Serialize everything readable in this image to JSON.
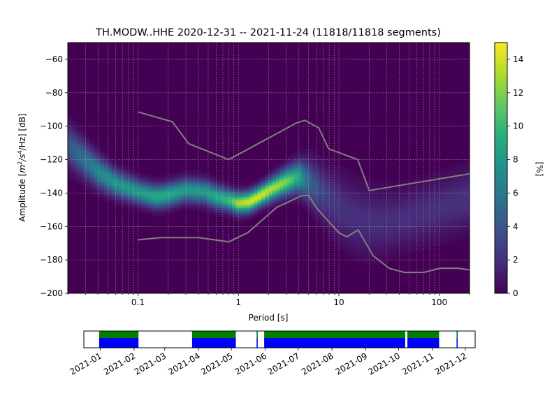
{
  "chart_data": [
    {
      "type": "heatmap",
      "title": "TH.MODW..HHE   2020-12-31 -- 2021-11-24  (11818/11818 segments)",
      "xlabel": "Period [s]",
      "ylabel_prefix": "Amplitude [",
      "ylabel_unit_base": "m",
      "ylabel_unit_sup1": "2",
      "ylabel_unit_mid": "/s",
      "ylabel_unit_sup2": "4",
      "ylabel_unit_end": "/Hz] [dB]",
      "x_scale": "log",
      "xlim": [
        0.02,
        200
      ],
      "ylim": [
        -200,
        -50
      ],
      "xticks": [
        0.1,
        1,
        10,
        100
      ],
      "xtick_labels": [
        "0.1",
        "1",
        "10",
        "100"
      ],
      "yticks": [
        -60,
        -80,
        -100,
        -120,
        -140,
        -160,
        -180,
        -200
      ],
      "ytick_labels": [
        "−60",
        "−80",
        "−100",
        "−120",
        "−140",
        "−160",
        "−180",
        "−200"
      ],
      "grid": true,
      "colormap": "viridis",
      "colorbar": {
        "label": "[%]",
        "range": [
          0,
          15
        ],
        "ticks": [
          0,
          2,
          4,
          6,
          8,
          10,
          12,
          14
        ],
        "tick_labels": [
          "0",
          "2",
          "4",
          "6",
          "8",
          "10",
          "12",
          "14"
        ]
      },
      "density_ridge": {
        "period": [
          0.02,
          0.04,
          0.06,
          0.1,
          0.15,
          0.2,
          0.3,
          0.45,
          0.6,
          0.8,
          1.0,
          1.3,
          1.7,
          2.2,
          3.0,
          4.0,
          5.0,
          7.0,
          10,
          15,
          25,
          40,
          60,
          100,
          200
        ],
        "db": [
          -111,
          -127,
          -134,
          -139,
          -142,
          -141,
          -138,
          -139,
          -142,
          -144,
          -146,
          -145,
          -141,
          -137,
          -133,
          -130,
          -133,
          -140,
          -148,
          -155,
          -158,
          -156,
          -153,
          -149,
          -143
        ],
        "width_db": [
          8,
          6,
          5,
          4.5,
          4.5,
          4.5,
          4.5,
          4.5,
          4.5,
          4,
          4,
          4,
          4,
          4.5,
          5,
          6,
          8,
          10,
          12,
          13,
          12,
          11,
          11,
          11,
          11
        ],
        "peak_percent": [
          4,
          7,
          8,
          8,
          9,
          9,
          8,
          8,
          9,
          10,
          13,
          14,
          14,
          13,
          12,
          9,
          5,
          3,
          2.2,
          2,
          2,
          2,
          2,
          2,
          2.2
        ]
      },
      "noise_models": [
        {
          "period": [
            0.1,
            0.22,
            0.32,
            0.8,
            3.8,
            4.6,
            6.3,
            7.9,
            15.4,
            20,
            200
          ],
          "db": [
            -91.5,
            -97.4,
            -110.5,
            -120,
            -98,
            -96.5,
            -101,
            -113.5,
            -120,
            -138.5,
            -128.5
          ]
        },
        {
          "period": [
            0.1,
            0.17,
            0.4,
            0.8,
            1.24,
            2.4,
            4.3,
            5.0,
            6.0,
            10,
            12,
            15.6,
            21.9,
            31.6,
            45,
            70,
            101,
            154,
            200
          ],
          "db": [
            -168,
            -166.7,
            -166.7,
            -169.2,
            -163.7,
            -148.6,
            -141.5,
            -141.5,
            -149,
            -163.8,
            -166.2,
            -162.1,
            -177.5,
            -185,
            -187.5,
            -187.5,
            -185,
            -185,
            -186
          ]
        }
      ]
    },
    {
      "type": "timeline",
      "x_scale": "date",
      "xlim": [
        "2020-12-17",
        "2021-12-10"
      ],
      "xticks": [
        "2021-01-01",
        "2021-02-01",
        "2021-03-01",
        "2021-04-01",
        "2021-05-01",
        "2021-06-01",
        "2021-07-01",
        "2021-08-01",
        "2021-09-01",
        "2021-10-01",
        "2021-11-01",
        "2021-12-01"
      ],
      "xtick_labels": [
        "2021-01",
        "2021-02",
        "2021-03",
        "2021-04",
        "2021-05",
        "2021-06",
        "2021-07",
        "2021-08",
        "2021-09",
        "2021-10",
        "2021-11",
        "2021-12"
      ],
      "coverage_color": "#0000ff",
      "used_color": "#008000",
      "gap_color": "#ff0000",
      "segments": [
        [
          "2020-12-31",
          "2021-02-05"
        ],
        [
          "2021-03-26",
          "2021-05-05"
        ],
        [
          "2021-05-24",
          "2021-05-25"
        ],
        [
          "2021-05-31",
          "2021-10-07"
        ],
        [
          "2021-10-09",
          "2021-11-07"
        ],
        [
          "2021-11-23",
          "2021-11-24"
        ]
      ]
    }
  ]
}
